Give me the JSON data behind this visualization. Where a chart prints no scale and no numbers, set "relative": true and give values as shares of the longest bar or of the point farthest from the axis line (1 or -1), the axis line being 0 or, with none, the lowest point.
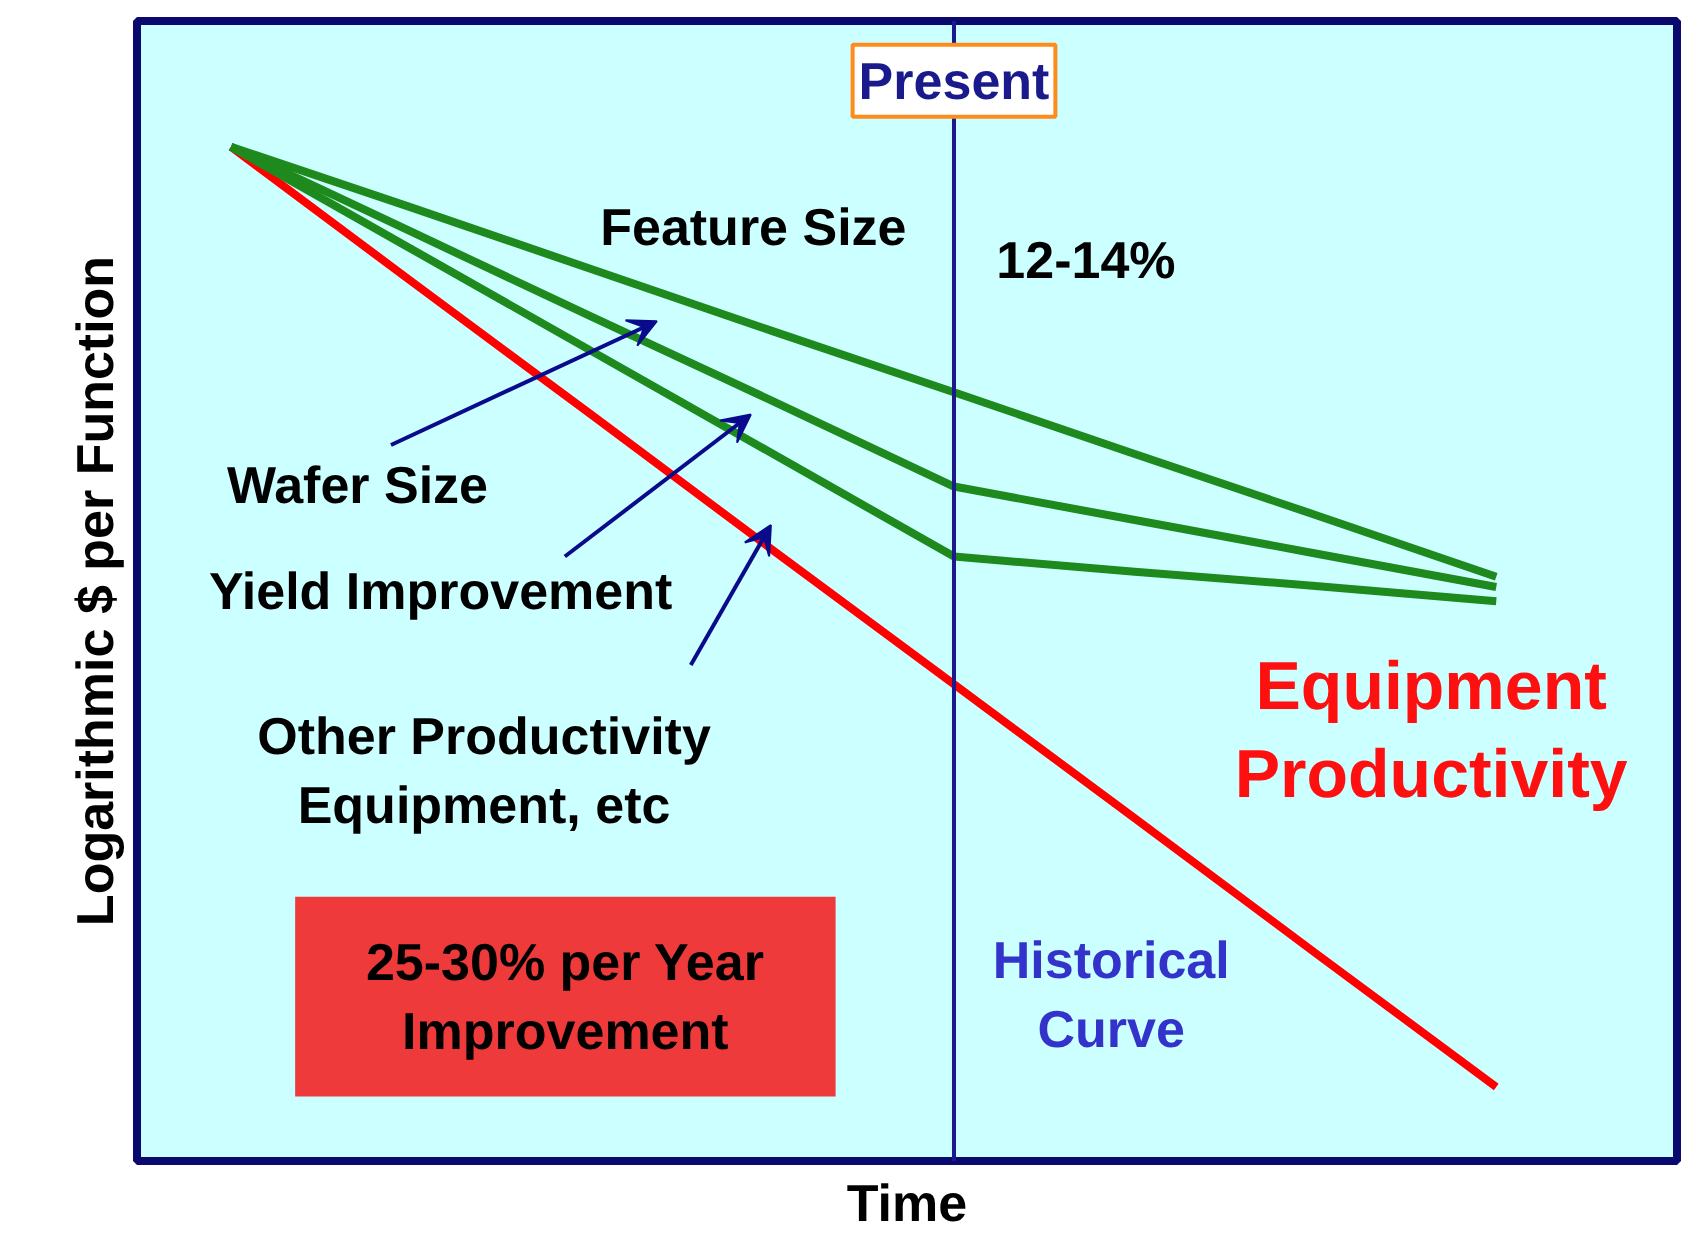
{
  "chart_data": {
    "type": "line",
    "relative": true,
    "xlabel": "Time",
    "ylabel": "Logarithmic $ per Function",
    "categories": [
      null,
      null,
      null,
      null,
      null,
      null,
      null,
      null
    ],
    "series": [
      {
        "color": "#ff0000",
        "values": [
          1.0,
          0.867,
          0.735,
          0.602,
          0.47,
          0.338,
          0.205,
          0.073
        ]
      },
      {
        "color": "#1e8a1e",
        "values": [
          1.0,
          0.94,
          0.879,
          0.818,
          0.758,
          0.697,
          0.637,
          0.576
        ]
      },
      {
        "color": "#1e8a1e",
        "values": [
          1.0,
          0.916,
          0.832,
          0.749,
          0.665,
          0.632,
          0.599,
          0.566
        ]
      },
      {
        "color": "#1e8a1e",
        "values": [
          1.0,
          0.899,
          0.798,
          0.697,
          0.596,
          0.581,
          0.567,
          0.552
        ]
      }
    ],
    "annotations": [
      "Present",
      "Feature Size",
      "12-14%",
      "Wafer Size",
      "Yield Improvement",
      "Other Productivity\nEquipment, etc",
      "Equipment\nProductivity",
      "Historical\nCurve",
      "25-30% per Year\nImprovement"
    ],
    "grid": false,
    "marker": "none",
    "line_style": "solid"
  }
}
